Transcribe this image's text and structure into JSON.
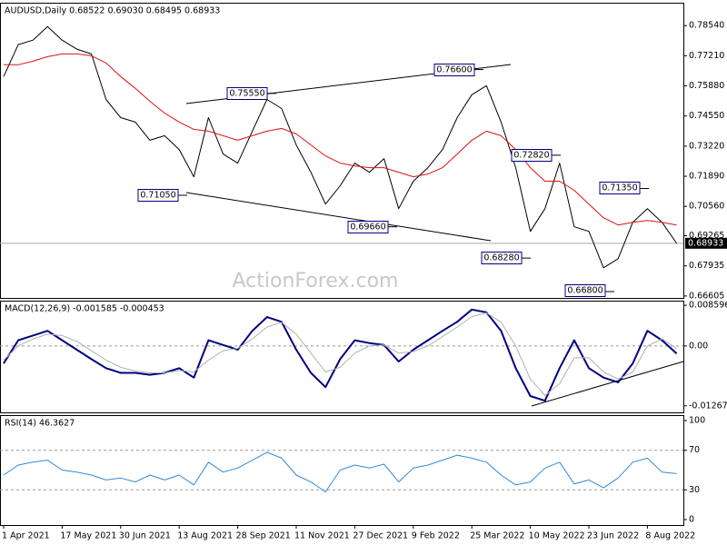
{
  "chart_data": [
    {
      "type": "line",
      "title": "AUDUSD,Daily  0.68522 0.69030 0.68495 0.68933",
      "watermark": "ActionForex.com",
      "ylim": [
        0.6652,
        0.7955
      ],
      "grid": false,
      "yticks": [
        {
          "value": 0.7854,
          "label": "0.78540"
        },
        {
          "value": 0.7721,
          "label": "0.77210"
        },
        {
          "value": 0.7588,
          "label": "0.75880"
        },
        {
          "value": 0.7455,
          "label": "0.74550"
        },
        {
          "value": 0.7322,
          "label": "0.73220"
        },
        {
          "value": 0.7189,
          "label": "0.71890"
        },
        {
          "value": 0.7056,
          "label": "0.70560"
        },
        0.69265,
        0.67935,
        0.66605
      ],
      "last": {
        "value": 0.68933,
        "label": "0.68933"
      },
      "series": [
        {
          "color": "#000000",
          "values": [
            0.7629,
            0.777,
            0.779,
            0.785,
            0.779,
            0.775,
            0.7729,
            0.7528,
            0.7448,
            0.7428,
            0.7348,
            0.7368,
            0.7307,
            0.7187,
            0.7448,
            0.7287,
            0.7247,
            0.7388,
            0.7528,
            0.7488,
            0.7327,
            0.7207,
            0.7066,
            0.7147,
            0.7247,
            0.7207,
            0.7267,
            0.7046,
            0.7167,
            0.7227,
            0.7307,
            0.7448,
            0.7549,
            0.7589,
            0.7428,
            0.7227,
            0.6946,
            0.7046,
            0.7247,
            0.6966,
            0.6946,
            0.6785,
            0.6825,
            0.6986,
            0.7046,
            0.6986,
            0.6893
          ]
        },
        {
          "color": "#e01010",
          "values": [
            0.7681,
            0.7681,
            0.7697,
            0.7717,
            0.7729,
            0.7729,
            0.7721,
            0.7689,
            0.7629,
            0.7577,
            0.752,
            0.7468,
            0.7428,
            0.7396,
            0.7388,
            0.7368,
            0.7348,
            0.7368,
            0.7388,
            0.74,
            0.7376,
            0.7327,
            0.7279,
            0.7247,
            0.7235,
            0.7227,
            0.7227,
            0.7207,
            0.7187,
            0.7199,
            0.7227,
            0.7287,
            0.7348,
            0.7388,
            0.7368,
            0.7307,
            0.7227,
            0.7167,
            0.7167,
            0.7127,
            0.7066,
            0.7006,
            0.6974,
            0.6986,
            0.6994,
            0.6986,
            0.6974
          ]
        }
      ],
      "annotations": [
        {
          "value": 0.7105,
          "label": "0.71050"
        },
        {
          "value": 0.7555,
          "label": "0.75550"
        },
        {
          "value": 0.766,
          "label": "0.76600"
        },
        {
          "value": 0.6966,
          "label": "0.69660"
        },
        {
          "value": 0.7282,
          "label": "0.72820"
        },
        {
          "value": 0.6828,
          "label": "0.68280"
        },
        {
          "value": 0.7135,
          "label": "0.71350"
        },
        {
          "value": 0.668,
          "label": "0.66800"
        }
      ]
    },
    {
      "type": "line",
      "title": "MACD(12,26,9) -0.001585 -0.000453",
      "ylim": [
        -0.01405,
        0.00958
      ],
      "grid": true,
      "yticks": [
        0.008596,
        {
          "value": 0,
          "label": "0.00"
        },
        -0.01267
      ],
      "series": [
        {
          "color": "#000080",
          "width": 2,
          "values": [
            -0.0037,
            0.0012,
            0.0022,
            0.0032,
            0.0012,
            -0.0008,
            -0.0028,
            -0.0047,
            -0.0057,
            -0.0057,
            -0.0061,
            -0.0057,
            -0.0047,
            -0.0067,
            0.0012,
            0.0002,
            -0.0008,
            0.0032,
            0.0061,
            0.0051,
            -0.0008,
            -0.0057,
            -0.0087,
            -0.0028,
            0.0012,
            0.0006,
            0.0002,
            -0.0033,
            -0.0008,
            0.0012,
            0.0032,
            0.0051,
            0.0077,
            0.0071,
            0.0032,
            -0.0047,
            -0.0106,
            -0.0116,
            -0.0047,
            0.0012,
            -0.0047,
            -0.0067,
            -0.0077,
            -0.0037,
            0.0032,
            0.0012,
            -0.0016
          ]
        },
        {
          "color": "#b0b0b0",
          "width": 1,
          "values": [
            -0.003,
            0,
            0.0015,
            0.0025,
            0.0022,
            0.001,
            -0.001,
            -0.003,
            -0.0045,
            -0.0053,
            -0.0057,
            -0.0057,
            -0.0052,
            -0.0055,
            -0.003,
            -0.001,
            -0.0005,
            0.0015,
            0.004,
            0.005,
            0.0025,
            -0.0015,
            -0.0055,
            -0.0045,
            -0.0015,
            0,
            0.0002,
            -0.0015,
            -0.0012,
            0,
            0.002,
            0.004,
            0.0062,
            0.007,
            0.005,
            0,
            -0.007,
            -0.0105,
            -0.008,
            -0.0025,
            -0.0025,
            -0.0055,
            -0.007,
            -0.0055,
            0,
            0.0015,
            -0.0005
          ]
        }
      ]
    },
    {
      "type": "line",
      "title": "RSI(14) 46.3627",
      "ylim": [
        -5.5,
        105.5
      ],
      "grid": true,
      "yticks": [
        100,
        70,
        30,
        0
      ],
      "series": [
        {
          "color": "#2f8ad8",
          "width": 1,
          "values": [
            45,
            55,
            58,
            60,
            50,
            48,
            45,
            40,
            42,
            38,
            45,
            40,
            45,
            35,
            58,
            48,
            52,
            60,
            68,
            62,
            45,
            38,
            28,
            50,
            55,
            52,
            56,
            38,
            52,
            55,
            60,
            65,
            62,
            58,
            45,
            35,
            38,
            52,
            58,
            36,
            40,
            32,
            42,
            58,
            62,
            48,
            46.4
          ]
        }
      ],
      "categories": [
        "1 Apr 2021",
        null,
        null,
        null,
        "17 May 2021",
        null,
        null,
        null,
        "30 Jun 2021",
        null,
        null,
        null,
        "13 Aug 2021",
        null,
        null,
        null,
        "28 Sep 2021",
        null,
        null,
        null,
        "11 Nov 2021",
        null,
        null,
        null,
        "27 Dec 2021",
        null,
        null,
        null,
        "9 Feb 2022",
        null,
        null,
        null,
        "25 Mar 2022",
        null,
        null,
        null,
        "10 May 2022",
        null,
        null,
        null,
        "23 Jun 2022",
        null,
        null,
        null,
        "8 Aug 2022",
        null,
        null
      ]
    }
  ]
}
